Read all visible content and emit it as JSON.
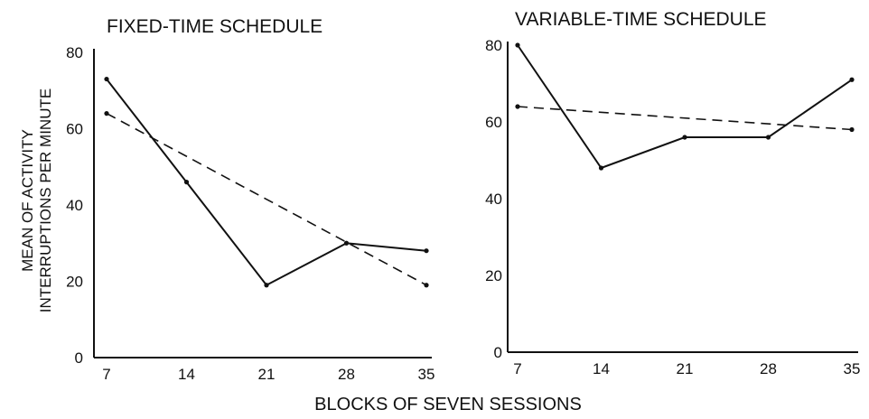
{
  "figure": {
    "ylabel_lines": [
      "MEAN OF ACTIVITY",
      "INTERRUPTIONS PER MINUTE"
    ],
    "shared_xlabel": "BLOCKS OF SEVEN SESSIONS"
  },
  "chart_data": [
    {
      "type": "line",
      "title": "FIXED-TIME SCHEDULE",
      "xlabel": "",
      "ylabel": "",
      "xticks": [
        "7",
        "14",
        "21",
        "28",
        "35"
      ],
      "yticks": [
        "0",
        "20",
        "40",
        "60",
        "80"
      ],
      "xlim": [
        7,
        35
      ],
      "ylim": [
        0,
        80
      ],
      "series": [
        {
          "style": "solid",
          "x": [
            7,
            14,
            21,
            28,
            35
          ],
          "y": [
            73,
            46,
            19,
            30,
            28
          ]
        },
        {
          "style": "dashed",
          "x": [
            7,
            35
          ],
          "y": [
            64,
            19
          ]
        }
      ]
    },
    {
      "type": "line",
      "title": "VARIABLE-TIME SCHEDULE",
      "xlabel": "",
      "ylabel": "",
      "xticks": [
        "7",
        "14",
        "21",
        "28",
        "35"
      ],
      "yticks": [
        "0",
        "20",
        "40",
        "60",
        "80"
      ],
      "xlim": [
        7,
        35
      ],
      "ylim": [
        0,
        80
      ],
      "series": [
        {
          "style": "solid",
          "x": [
            7,
            14,
            21,
            28,
            35
          ],
          "y": [
            80,
            48,
            56,
            56,
            71
          ]
        },
        {
          "style": "dashed",
          "x": [
            7,
            35
          ],
          "y": [
            64,
            58
          ]
        }
      ]
    }
  ]
}
